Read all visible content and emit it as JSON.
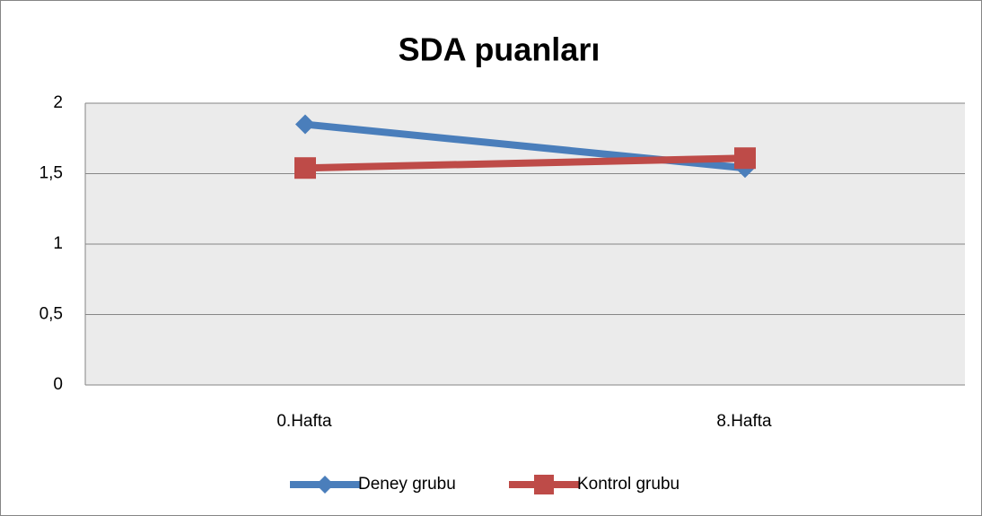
{
  "chart_data": {
    "type": "line",
    "title": "SDA puanları",
    "categories": [
      "0.Hafta",
      "8.Hafta"
    ],
    "series": [
      {
        "name": "Deney grubu",
        "color": "#4a7ebb",
        "marker": "diamond",
        "values": [
          1.85,
          1.54
        ]
      },
      {
        "name": "Kontrol grubu",
        "color": "#be4b48",
        "marker": "square",
        "values": [
          1.54,
          1.61
        ]
      }
    ],
    "ylim": [
      0,
      2
    ],
    "yticks": [
      0,
      {
        "value": 0.5,
        "label": "0,5"
      },
      1,
      {
        "value": 1.5,
        "label": "1,5"
      },
      2
    ],
    "grid": true,
    "legend": "bottom"
  }
}
